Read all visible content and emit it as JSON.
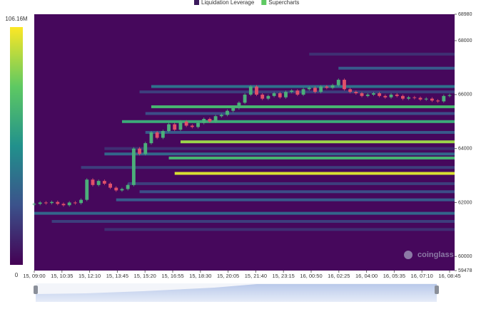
{
  "chart_data": {
    "type": "heatmap-candles",
    "legend": [
      {
        "name": "Liquidation Leverage",
        "color": "#3b1a5c"
      },
      {
        "name": "Supercharts",
        "color": "#5ec962"
      }
    ],
    "x": [
      "15, 09:00",
      "15, 10:35",
      "15, 12:10",
      "15, 13:45",
      "15, 15:20",
      "15, 16:55",
      "15, 18:30",
      "15, 20:05",
      "15, 21:40",
      "15, 23:15",
      "16, 00:50",
      "16, 02:25",
      "16, 04:00",
      "16, 05:35",
      "16, 07:10",
      "16, 08:45"
    ],
    "ylim": [
      59478,
      68980
    ],
    "yticks": [
      59478,
      60000,
      62000,
      64000,
      66000,
      68000,
      68980
    ],
    "colorbar_ticks": [
      0,
      {
        "value": 106.16,
        "label": "106.16M"
      }
    ],
    "price": [
      61950,
      62000,
      61980,
      62020,
      61950,
      61900,
      62000,
      61980,
      62100,
      62850,
      62650,
      62800,
      62700,
      62550,
      62450,
      62500,
      62650,
      64000,
      63800,
      64200,
      64600,
      64400,
      64650,
      64900,
      64700,
      65000,
      64850,
      64800,
      64950,
      65100,
      65000,
      65200,
      65250,
      65400,
      65500,
      65700,
      66000,
      66300,
      66000,
      65850,
      65950,
      66050,
      65900,
      66100,
      66150,
      66000,
      66200,
      66250,
      66100,
      66300,
      66250,
      66350,
      66550,
      66200,
      66100,
      66050,
      65950,
      66000,
      66050,
      65950,
      65900,
      66000,
      65950,
      65850,
      65900,
      65880,
      65820,
      65850,
      65780,
      65750,
      65950,
      65980
    ],
    "levels": [
      {
        "price": 67500,
        "from": 47,
        "value": 15
      },
      {
        "price": 66980,
        "from": 52,
        "value": 30
      },
      {
        "price": 66300,
        "from": 20,
        "value": 40
      },
      {
        "price": 66100,
        "from": 18,
        "value": 20
      },
      {
        "price": 65550,
        "from": 20,
        "value": 70
      },
      {
        "price": 65300,
        "from": 19,
        "value": 25
      },
      {
        "price": 65000,
        "from": 15,
        "value": 65
      },
      {
        "price": 64600,
        "from": 19,
        "value": 30
      },
      {
        "price": 64250,
        "from": 25,
        "value": 90
      },
      {
        "price": 64000,
        "from": 12,
        "value": 15
      },
      {
        "price": 63800,
        "from": 12,
        "value": 35
      },
      {
        "price": 63650,
        "from": 23,
        "value": 70
      },
      {
        "price": 63300,
        "from": 8,
        "value": 20
      },
      {
        "price": 63080,
        "from": 24,
        "value": 100
      },
      {
        "price": 62700,
        "from": 16,
        "value": 20
      },
      {
        "price": 62400,
        "from": 18,
        "value": 25
      },
      {
        "price": 62100,
        "from": 14,
        "value": 30
      },
      {
        "price": 61600,
        "from": 0,
        "value": 35
      },
      {
        "price": 61300,
        "from": 3,
        "value": 20
      },
      {
        "price": 61000,
        "from": 12,
        "value": 15
      }
    ],
    "watermark": "coinglass"
  }
}
